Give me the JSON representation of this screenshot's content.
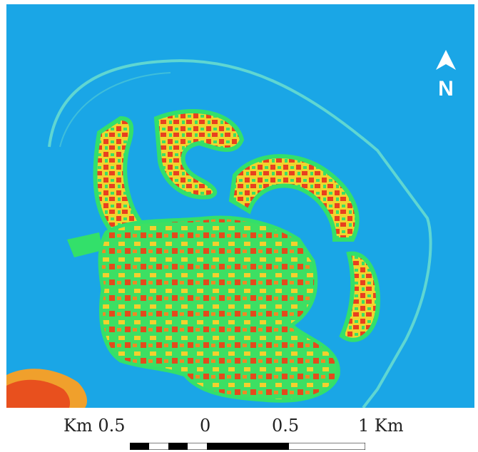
{
  "map": {
    "north_label": "N",
    "colors": {
      "water": "#1aa6e6",
      "low": "#33e06a",
      "mid": "#f7e235",
      "high": "#ee3a22",
      "boundary": "#5fd6d2"
    }
  },
  "scale_bar": {
    "labels": [
      "Km 0.5",
      "0",
      "0.5",
      "1 Km"
    ]
  }
}
